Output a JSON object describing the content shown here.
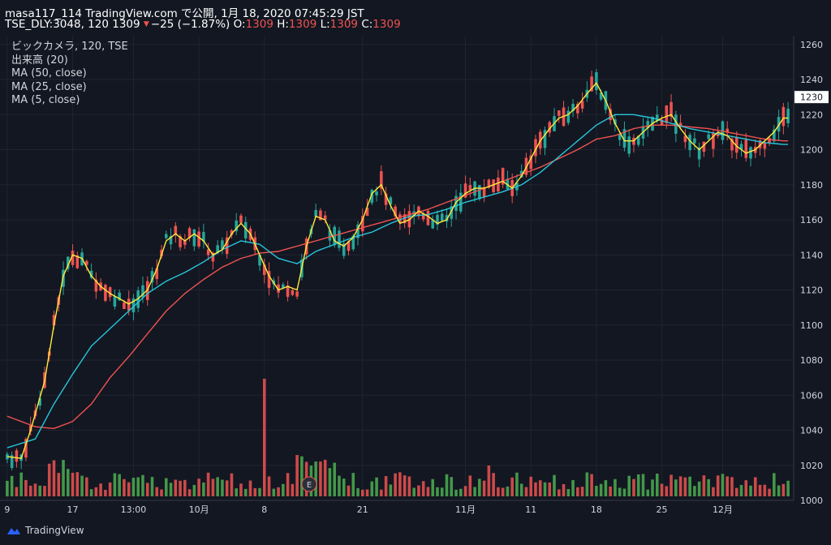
{
  "header": {
    "line1": "masa117_114 TradingView.com で公開, 1月 18, 2020 07:45:29 JST",
    "symbol_info": "TSE_DLY:3048, 120",
    "last": "1309",
    "change": "−25 (−1.87%)",
    "o_label": "O:",
    "o_value": "1309",
    "h_label": "H:",
    "h_value": "1309",
    "l_label": "L:",
    "l_value": "1309",
    "c_label": "C:",
    "c_value": "1309"
  },
  "legend": {
    "symbol": "ビックカメラ, 120, TSE",
    "volume": "出来高 (20)",
    "ma50": "MA (50, close)",
    "ma25": "MA (25, close)",
    "ma5": "MA (5, close)"
  },
  "brand": "TradingView",
  "colors": {
    "background": "#131722",
    "up": "#26a69a",
    "down": "#ef5350",
    "ma50": "#ef5350",
    "ma25": "#26c6da",
    "ma5": "#ffeb3b",
    "vol_up": "#4caf50",
    "vol_down": "#ef5350"
  },
  "icons": {
    "earnings_marker": "E",
    "logo": "tradingview-logo-icon"
  },
  "chart_data": {
    "type": "candlestick",
    "ylim": [
      1000,
      1265
    ],
    "y_ticks": [
      1000,
      1020,
      1040,
      1060,
      1080,
      1100,
      1120,
      1140,
      1160,
      1180,
      1200,
      1220,
      1240,
      1260
    ],
    "price_label": "1230",
    "x_tick_labels": [
      "9",
      "17",
      "13:00",
      "10月",
      "8",
      "21",
      "11月",
      "11",
      "18",
      "25",
      "12月"
    ],
    "ma5_points": [
      [
        0,
        1025
      ],
      [
        3,
        1024
      ],
      [
        5,
        1040
      ],
      [
        8,
        1068
      ],
      [
        10,
        1100
      ],
      [
        12,
        1128
      ],
      [
        14,
        1140
      ],
      [
        16,
        1138
      ],
      [
        18,
        1128
      ],
      [
        20,
        1122
      ],
      [
        22,
        1118
      ],
      [
        24,
        1115
      ],
      [
        26,
        1112
      ],
      [
        28,
        1115
      ],
      [
        30,
        1120
      ],
      [
        32,
        1132
      ],
      [
        34,
        1148
      ],
      [
        36,
        1152
      ],
      [
        38,
        1148
      ],
      [
        40,
        1152
      ],
      [
        42,
        1148
      ],
      [
        44,
        1140
      ],
      [
        46,
        1143
      ],
      [
        48,
        1152
      ],
      [
        50,
        1158
      ],
      [
        52,
        1152
      ],
      [
        54,
        1140
      ],
      [
        56,
        1128
      ],
      [
        58,
        1120
      ],
      [
        60,
        1122
      ],
      [
        62,
        1120
      ],
      [
        64,
        1145
      ],
      [
        66,
        1162
      ],
      [
        68,
        1160
      ],
      [
        70,
        1148
      ],
      [
        72,
        1145
      ],
      [
        74,
        1150
      ],
      [
        76,
        1160
      ],
      [
        78,
        1175
      ],
      [
        80,
        1180
      ],
      [
        82,
        1168
      ],
      [
        84,
        1158
      ],
      [
        86,
        1160
      ],
      [
        88,
        1165
      ],
      [
        90,
        1162
      ],
      [
        92,
        1158
      ],
      [
        94,
        1160
      ],
      [
        96,
        1170
      ],
      [
        98,
        1175
      ],
      [
        100,
        1178
      ],
      [
        102,
        1178
      ],
      [
        104,
        1180
      ],
      [
        106,
        1182
      ],
      [
        108,
        1178
      ],
      [
        110,
        1185
      ],
      [
        112,
        1195
      ],
      [
        114,
        1205
      ],
      [
        116,
        1212
      ],
      [
        118,
        1218
      ],
      [
        120,
        1220
      ],
      [
        122,
        1225
      ],
      [
        124,
        1232
      ],
      [
        126,
        1238
      ],
      [
        128,
        1228
      ],
      [
        130,
        1215
      ],
      [
        132,
        1205
      ],
      [
        134,
        1205
      ],
      [
        136,
        1210
      ],
      [
        138,
        1215
      ],
      [
        140,
        1218
      ],
      [
        142,
        1220
      ],
      [
        144,
        1212
      ],
      [
        146,
        1205
      ],
      [
        148,
        1200
      ],
      [
        150,
        1205
      ],
      [
        152,
        1210
      ],
      [
        154,
        1208
      ],
      [
        156,
        1202
      ],
      [
        158,
        1198
      ],
      [
        160,
        1200
      ],
      [
        162,
        1205
      ],
      [
        164,
        1210
      ],
      [
        166,
        1218
      ]
    ],
    "ma25_points": [
      [
        0,
        1030
      ],
      [
        6,
        1035
      ],
      [
        10,
        1055
      ],
      [
        14,
        1072
      ],
      [
        18,
        1088
      ],
      [
        22,
        1098
      ],
      [
        26,
        1108
      ],
      [
        30,
        1118
      ],
      [
        34,
        1125
      ],
      [
        38,
        1130
      ],
      [
        42,
        1136
      ],
      [
        46,
        1143
      ],
      [
        50,
        1148
      ],
      [
        54,
        1146
      ],
      [
        58,
        1138
      ],
      [
        62,
        1135
      ],
      [
        66,
        1142
      ],
      [
        70,
        1146
      ],
      [
        74,
        1150
      ],
      [
        78,
        1153
      ],
      [
        82,
        1158
      ],
      [
        86,
        1162
      ],
      [
        90,
        1163
      ],
      [
        94,
        1166
      ],
      [
        98,
        1170
      ],
      [
        102,
        1173
      ],
      [
        106,
        1176
      ],
      [
        110,
        1180
      ],
      [
        114,
        1187
      ],
      [
        118,
        1196
      ],
      [
        122,
        1205
      ],
      [
        126,
        1214
      ],
      [
        130,
        1220
      ],
      [
        134,
        1220
      ],
      [
        138,
        1218
      ],
      [
        142,
        1215
      ],
      [
        146,
        1212
      ],
      [
        150,
        1210
      ],
      [
        154,
        1208
      ],
      [
        158,
        1206
      ],
      [
        162,
        1204
      ],
      [
        166,
        1203
      ]
    ],
    "ma50_points": [
      [
        0,
        1048
      ],
      [
        6,
        1042
      ],
      [
        10,
        1041
      ],
      [
        14,
        1045
      ],
      [
        18,
        1055
      ],
      [
        22,
        1070
      ],
      [
        26,
        1082
      ],
      [
        30,
        1095
      ],
      [
        34,
        1108
      ],
      [
        38,
        1118
      ],
      [
        42,
        1126
      ],
      [
        46,
        1133
      ],
      [
        50,
        1138
      ],
      [
        54,
        1141
      ],
      [
        58,
        1142
      ],
      [
        62,
        1145
      ],
      [
        66,
        1148
      ],
      [
        70,
        1151
      ],
      [
        74,
        1154
      ],
      [
        78,
        1157
      ],
      [
        82,
        1160
      ],
      [
        86,
        1163
      ],
      [
        90,
        1166
      ],
      [
        94,
        1170
      ],
      [
        98,
        1174
      ],
      [
        102,
        1178
      ],
      [
        106,
        1182
      ],
      [
        110,
        1186
      ],
      [
        114,
        1190
      ],
      [
        118,
        1195
      ],
      [
        122,
        1200
      ],
      [
        126,
        1206
      ],
      [
        130,
        1208
      ],
      [
        134,
        1212
      ],
      [
        138,
        1214
      ],
      [
        142,
        1214
      ],
      [
        146,
        1213
      ],
      [
        150,
        1212
      ],
      [
        154,
        1210
      ],
      [
        158,
        1208
      ],
      [
        162,
        1206
      ],
      [
        166,
        1205
      ]
    ],
    "series": [
      {
        "name": "ビックカメラ",
        "kind": "ohlc"
      },
      {
        "name": "MA (50, close)",
        "kind": "line"
      },
      {
        "name": "MA (25, close)",
        "kind": "line"
      },
      {
        "name": "MA (5, close)",
        "kind": "line"
      },
      {
        "name": "出来高 (20)",
        "kind": "volume"
      }
    ]
  }
}
